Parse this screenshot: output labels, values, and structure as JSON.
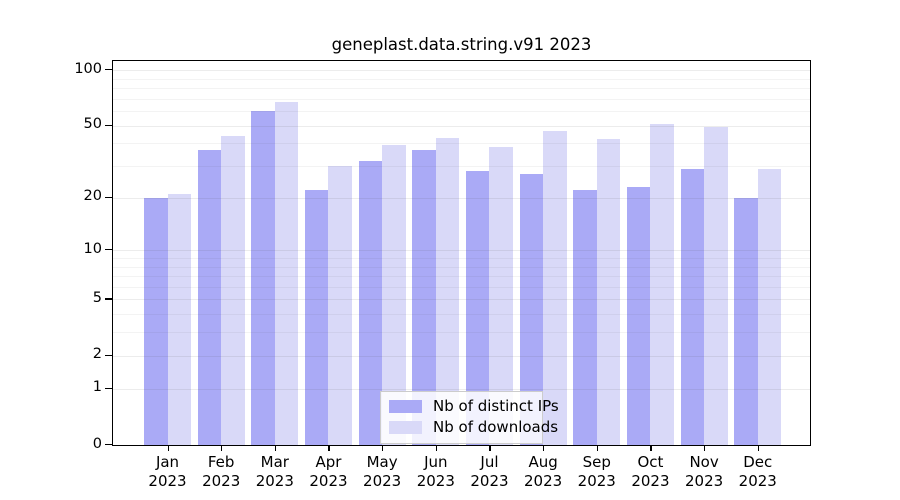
{
  "title": "geneplast.data.string.v91 2023",
  "chart_data": {
    "type": "bar",
    "title": "geneplast.data.string.v91 2023",
    "categories": [
      "Jan",
      "Feb",
      "Mar",
      "Apr",
      "May",
      "Jun",
      "Jul",
      "Aug",
      "Sep",
      "Oct",
      "Nov",
      "Dec"
    ],
    "x_tick_year": "2023",
    "series": [
      {
        "name": "Nb of distinct IPs",
        "color": "#aaaaf6",
        "values": [
          20,
          37,
          60,
          22,
          32,
          37,
          28,
          27,
          22,
          23,
          29,
          20
        ]
      },
      {
        "name": "Nb of downloads",
        "color": "#d9d9f8",
        "values": [
          21,
          44,
          67,
          30,
          39,
          43,
          38,
          47,
          42,
          51,
          49,
          29
        ]
      }
    ],
    "scale": "log1p",
    "ylim": [
      0,
      112
    ],
    "y_ticks": [
      100,
      50,
      20,
      10,
      5,
      2,
      1,
      0
    ],
    "minor_gridlines": [
      90,
      80,
      70,
      60,
      40,
      30,
      9,
      8,
      7,
      6,
      4,
      3
    ],
    "grid": true,
    "legend_position": "inside-bottom-center",
    "xlabel": "",
    "ylabel": "",
    "axis_color": "#000000",
    "background_color": "#ffffff"
  }
}
